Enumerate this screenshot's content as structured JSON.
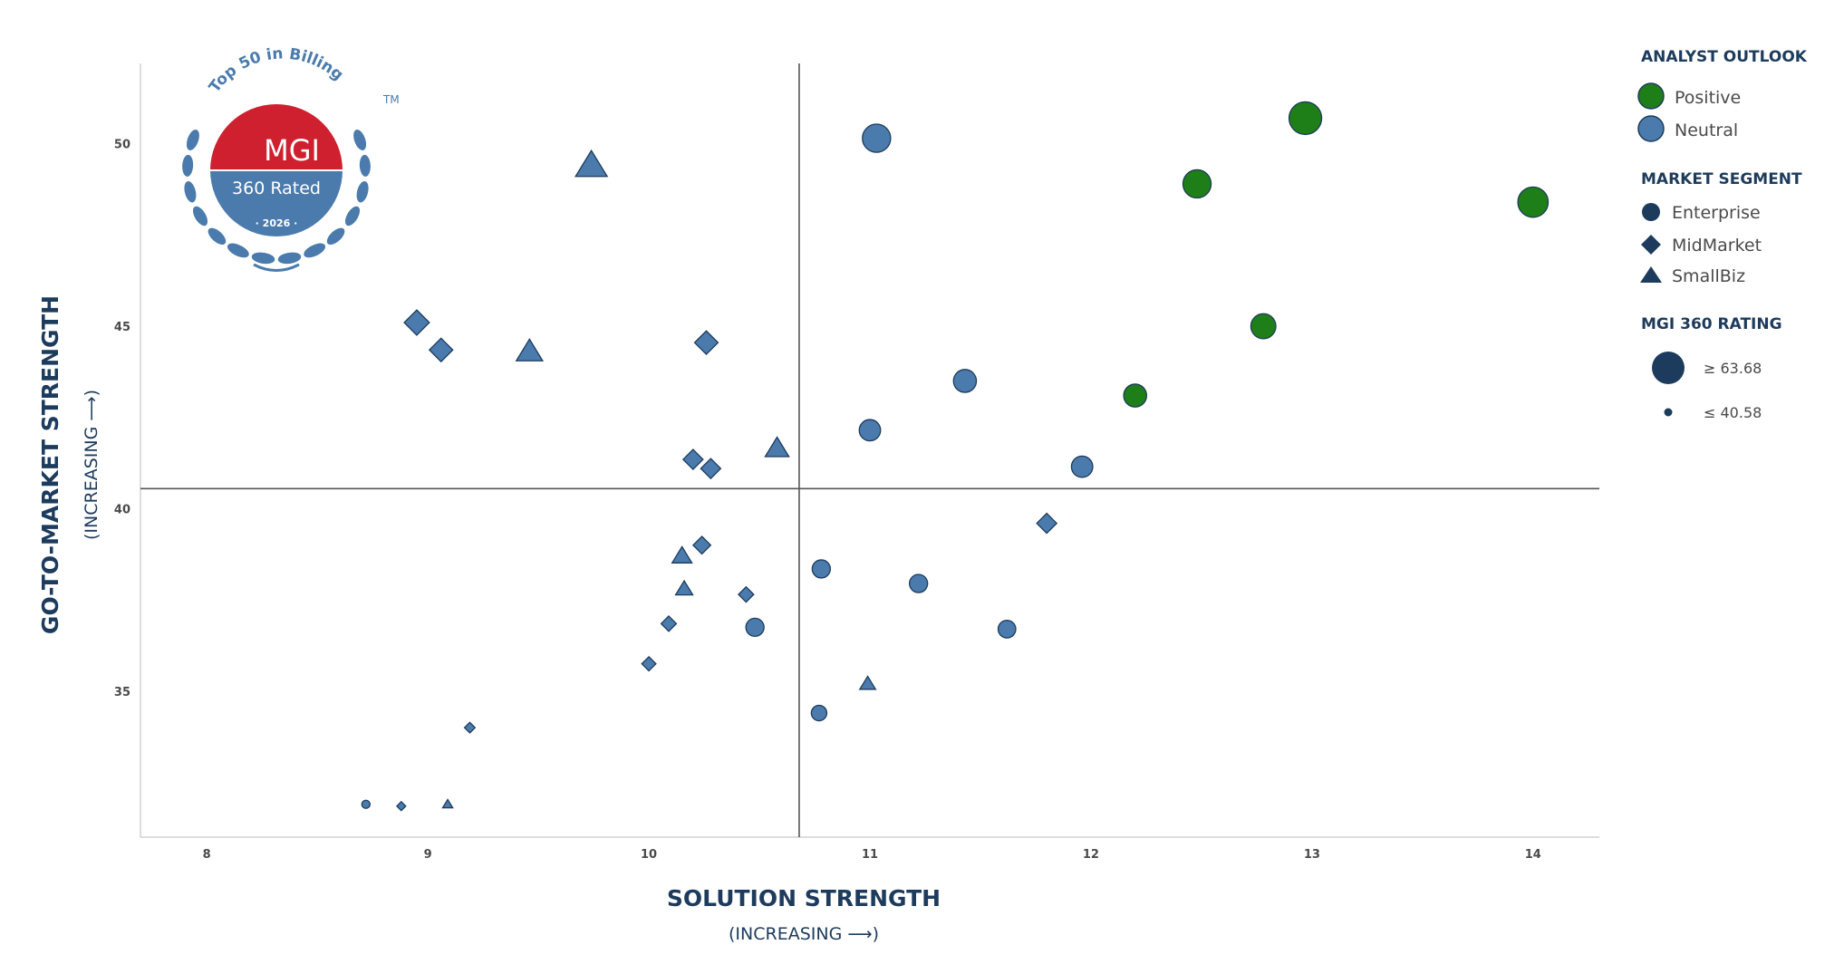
{
  "chart_data": {
    "type": "scatter",
    "xlabel": "SOLUTION STRENGTH",
    "xlabel_sub": "(INCREASING ⟶)",
    "ylabel": "GO-TO-MARKET STRENGTH",
    "ylabel_sub": "(INCREASING ⟶)",
    "xlim": [
      7.7,
      14.3
    ],
    "ylim": [
      31.0,
      52.2
    ],
    "xticks": [
      "8",
      "9",
      "10",
      "11",
      "12",
      "13",
      "14"
    ],
    "yticks": [
      "35",
      "40",
      "45",
      "50"
    ],
    "quadrant_x": 10.68,
    "quadrant_y": 40.55,
    "grid": false,
    "legend_position": "right",
    "colors": {
      "Positive": "#1e7e18",
      "Neutral": "#4a7bac",
      "legend_marker": "#1d3b5c",
      "axis": "#444444"
    },
    "legend": {
      "outlook_title": "ANALYST OUTLOOK",
      "outlook": [
        "Positive",
        "Neutral"
      ],
      "segment_title": "MARKET SEGMENT",
      "segments": [
        "Enterprise",
        "MidMarket",
        "SmallBiz"
      ],
      "rating_title": "MGI 360 RATING",
      "rating_high": "≥ 63.68",
      "rating_low": "≤ 40.58"
    },
    "rating_range": [
      40.58,
      63.68
    ],
    "points": [
      {
        "x": 12.97,
        "y": 50.7,
        "segment": "Enterprise",
        "outlook": "Positive",
        "rating": 63.68
      },
      {
        "x": 14.0,
        "y": 48.4,
        "segment": "Enterprise",
        "outlook": "Positive",
        "rating": 61.5
      },
      {
        "x": 12.48,
        "y": 48.9,
        "segment": "Enterprise",
        "outlook": "Positive",
        "rating": 59.5
      },
      {
        "x": 12.78,
        "y": 45.0,
        "segment": "Enterprise",
        "outlook": "Positive",
        "rating": 56.5
      },
      {
        "x": 12.2,
        "y": 43.1,
        "segment": "Enterprise",
        "outlook": "Positive",
        "rating": 54.5
      },
      {
        "x": 11.03,
        "y": 50.15,
        "segment": "Enterprise",
        "outlook": "Neutral",
        "rating": 59.5
      },
      {
        "x": 11.43,
        "y": 43.5,
        "segment": "Enterprise",
        "outlook": "Neutral",
        "rating": 54.5
      },
      {
        "x": 11.0,
        "y": 42.15,
        "segment": "Enterprise",
        "outlook": "Neutral",
        "rating": 53.0
      },
      {
        "x": 11.96,
        "y": 41.15,
        "segment": "Enterprise",
        "outlook": "Neutral",
        "rating": 53.0
      },
      {
        "x": 10.78,
        "y": 38.35,
        "segment": "Enterprise",
        "outlook": "Neutral",
        "rating": 50.0
      },
      {
        "x": 11.22,
        "y": 37.95,
        "segment": "Enterprise",
        "outlook": "Neutral",
        "rating": 50.0
      },
      {
        "x": 10.48,
        "y": 36.75,
        "segment": "Enterprise",
        "outlook": "Neutral",
        "rating": 50.0
      },
      {
        "x": 11.62,
        "y": 36.7,
        "segment": "Enterprise",
        "outlook": "Neutral",
        "rating": 49.5
      },
      {
        "x": 10.77,
        "y": 34.4,
        "segment": "Enterprise",
        "outlook": "Neutral",
        "rating": 47.5
      },
      {
        "x": 8.72,
        "y": 31.9,
        "segment": "Enterprise",
        "outlook": "Neutral",
        "rating": 40.58
      },
      {
        "x": 8.95,
        "y": 45.1,
        "segment": "MidMarket",
        "outlook": "Neutral",
        "rating": 54.5
      },
      {
        "x": 9.06,
        "y": 44.35,
        "segment": "MidMarket",
        "outlook": "Neutral",
        "rating": 53.0
      },
      {
        "x": 10.26,
        "y": 44.55,
        "segment": "MidMarket",
        "outlook": "Neutral",
        "rating": 53.0
      },
      {
        "x": 10.2,
        "y": 41.35,
        "segment": "MidMarket",
        "outlook": "Neutral",
        "rating": 50.0
      },
      {
        "x": 10.28,
        "y": 41.1,
        "segment": "MidMarket",
        "outlook": "Neutral",
        "rating": 50.0
      },
      {
        "x": 11.8,
        "y": 39.6,
        "segment": "MidMarket",
        "outlook": "Neutral",
        "rating": 50.0
      },
      {
        "x": 10.24,
        "y": 39.0,
        "segment": "MidMarket",
        "outlook": "Neutral",
        "rating": 48.0
      },
      {
        "x": 10.44,
        "y": 37.65,
        "segment": "MidMarket",
        "outlook": "Neutral",
        "rating": 46.0
      },
      {
        "x": 10.09,
        "y": 36.85,
        "segment": "MidMarket",
        "outlook": "Neutral",
        "rating": 46.0
      },
      {
        "x": 10.0,
        "y": 35.75,
        "segment": "MidMarket",
        "outlook": "Neutral",
        "rating": 45.0
      },
      {
        "x": 9.19,
        "y": 34.0,
        "segment": "MidMarket",
        "outlook": "Neutral",
        "rating": 42.0
      },
      {
        "x": 8.88,
        "y": 31.85,
        "segment": "MidMarket",
        "outlook": "Neutral",
        "rating": 40.58
      },
      {
        "x": 9.74,
        "y": 49.4,
        "segment": "SmallBiz",
        "outlook": "Neutral",
        "rating": 57.0
      },
      {
        "x": 9.46,
        "y": 44.3,
        "segment": "SmallBiz",
        "outlook": "Neutral",
        "rating": 53.0
      },
      {
        "x": 10.58,
        "y": 41.65,
        "segment": "SmallBiz",
        "outlook": "Neutral",
        "rating": 51.0
      },
      {
        "x": 10.15,
        "y": 38.7,
        "segment": "SmallBiz",
        "outlook": "Neutral",
        "rating": 48.0
      },
      {
        "x": 10.16,
        "y": 37.8,
        "segment": "SmallBiz",
        "outlook": "Neutral",
        "rating": 46.0
      },
      {
        "x": 10.99,
        "y": 35.2,
        "segment": "SmallBiz",
        "outlook": "Neutral",
        "rating": 45.0
      },
      {
        "x": 9.09,
        "y": 31.9,
        "segment": "SmallBiz",
        "outlook": "Neutral",
        "rating": 40.58
      }
    ]
  },
  "badge": {
    "arc_text": "Top 50 in Billing",
    "tm": "TM",
    "brand": "MGI",
    "rated": "360 Rated",
    "year": "· 2026 ·",
    "colors": {
      "red": "#cf2030",
      "blue": "#4a7bac"
    }
  }
}
